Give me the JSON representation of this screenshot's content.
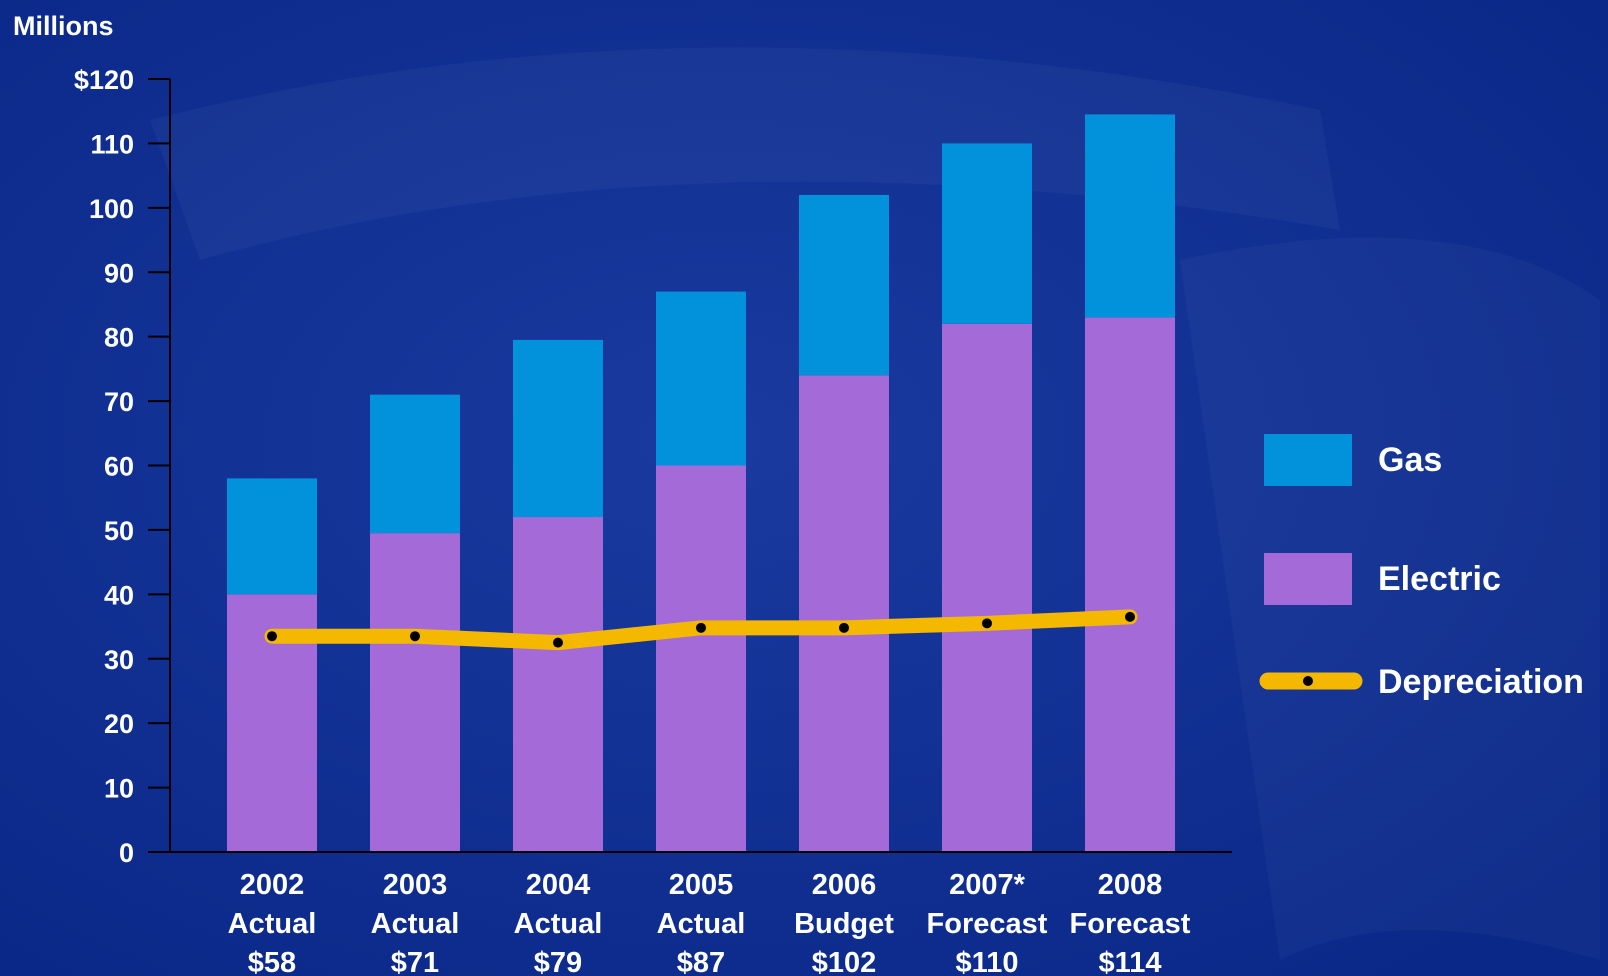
{
  "chart_data": {
    "type": "bar",
    "ylabel": "Millions",
    "ylim": [
      0,
      120
    ],
    "yticks": [
      "0",
      "10",
      "20",
      "30",
      "40",
      "50",
      "60",
      "70",
      "80",
      "90",
      "100",
      "110",
      "$120"
    ],
    "categories": [
      [
        "2002",
        "Actual",
        "$58"
      ],
      [
        "2003",
        "Actual",
        "$71"
      ],
      [
        "2004",
        "Actual",
        "$79"
      ],
      [
        "2005",
        "Actual",
        "$87"
      ],
      [
        "2006",
        "Budget",
        "$102"
      ],
      [
        "2007*",
        "Forecast",
        "$110"
      ],
      [
        "2008",
        "Forecast",
        "$114"
      ]
    ],
    "series": [
      {
        "name": "Electric",
        "kind": "bar",
        "stack": 0,
        "color": "#a46ad8",
        "values": [
          40,
          49.5,
          52,
          60,
          74,
          82,
          83
        ]
      },
      {
        "name": "Gas",
        "kind": "bar",
        "stack": 1,
        "color": "#0292dc",
        "values": [
          18,
          21.5,
          27.5,
          27,
          28,
          28,
          31.5
        ]
      },
      {
        "name": "Depreciation",
        "kind": "line",
        "color": "#f5b800",
        "values": [
          33.5,
          33.5,
          32.5,
          34.8,
          34.8,
          35.5,
          36.5
        ]
      }
    ],
    "legend": {
      "position": "right",
      "items": [
        {
          "label": "Gas",
          "color": "#0292dc",
          "kind": "box"
        },
        {
          "label": "Electric",
          "color": "#a46ad8",
          "kind": "box"
        },
        {
          "label": "Depreciation",
          "color": "#f5b800",
          "kind": "line"
        }
      ]
    },
    "grid": false
  }
}
